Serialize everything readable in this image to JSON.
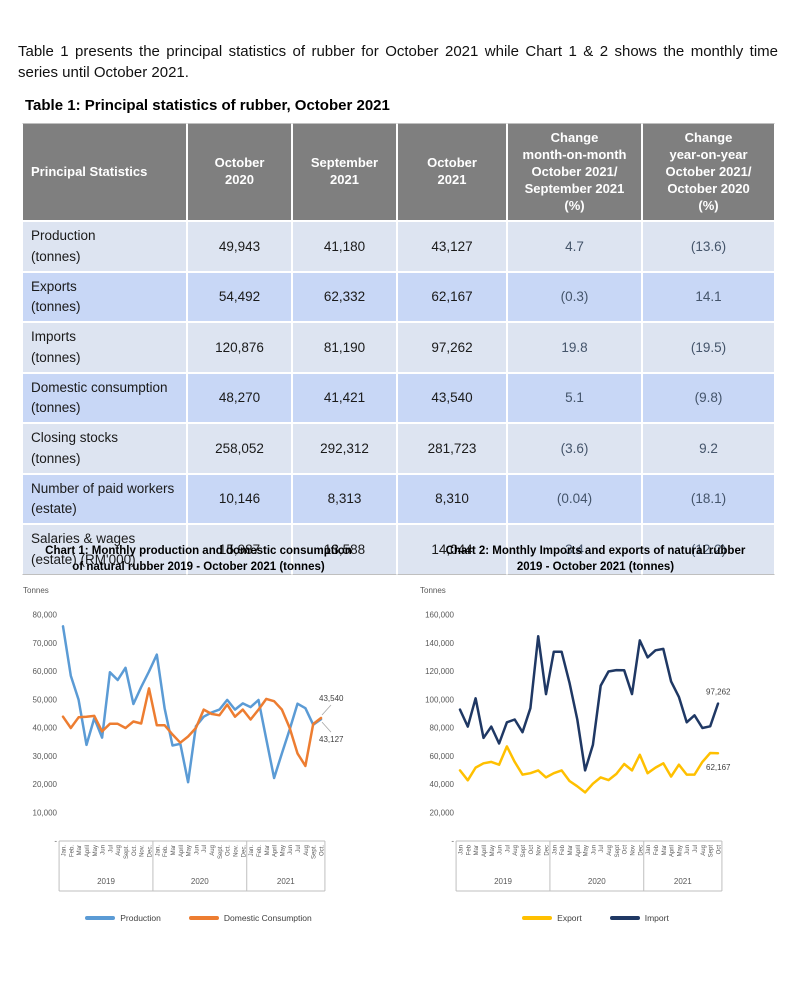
{
  "intro": {
    "text": "Table 1 presents the principal statistics of rubber for October 2021 while Chart 1 & 2 shows the monthly time series until October 2021."
  },
  "table": {
    "title": "Table 1: Principal statistics of rubber, October 2021",
    "columns": [
      "Principal Statistics",
      "October\n2020",
      "September\n2021",
      "October\n2021",
      "Change\nmonth-on-month\nOctober 2021/\nSeptember 2021\n(%)",
      "Change\nyear-on-year\nOctober 2021/\nOctober 2020\n(%)"
    ],
    "rows": [
      {
        "label": "Production",
        "sublabel": "(tonnes)",
        "values": [
          "49,943",
          "41,180",
          "43,127",
          "4.7",
          "(13.6)"
        ]
      },
      {
        "label": "Exports",
        "sublabel": "(tonnes)",
        "values": [
          "54,492",
          "62,332",
          "62,167",
          "(0.3)",
          "14.1"
        ]
      },
      {
        "label": "Imports",
        "sublabel": "(tonnes)",
        "values": [
          "120,876",
          "81,190",
          "97,262",
          "19.8",
          "(19.5)"
        ]
      },
      {
        "label": "Domestic consumption",
        "sublabel": "(tonnes)",
        "values": [
          "48,270",
          "41,421",
          "43,540",
          "5.1",
          "(9.8)"
        ]
      },
      {
        "label": "Closing stocks",
        "sublabel": "(tonnes)",
        "values": [
          "258,052",
          "292,312",
          "281,723",
          "(3.6)",
          "9.2"
        ]
      },
      {
        "label": "Number of paid workers",
        "sublabel": "(estate)",
        "values": [
          "10,146",
          "8,313",
          "8,310",
          "(0.04)",
          "(18.1)"
        ]
      },
      {
        "label": "Salaries & wages",
        "sublabel": "(estate) (RM'000)",
        "values": [
          "15,987",
          "13,588",
          "14,044",
          "3.4",
          "(12.2)"
        ]
      }
    ]
  },
  "chart_data": [
    {
      "type": "line",
      "title": "Chart 1: Monthly production and domestic consumption\nof natural rubber 2019 - October 2021 (tonnes)",
      "ylabel": "Tonnes",
      "ylim": [
        0,
        80000
      ],
      "ytick_step": 10000,
      "zero_label": "-",
      "grid": false,
      "legend_position": "bottom",
      "x_months": [
        "Jan.",
        "Feb.",
        "Mar",
        "April",
        "May",
        "Jun",
        "Jul",
        "Aug",
        "Sept.",
        "Oct.",
        "Nov.",
        "Dec.",
        "Jan.",
        "Feb.",
        "Mar",
        "April",
        "May",
        "Jun",
        "Jul",
        "Aug",
        "Sept.",
        "Oct.",
        "Nov.",
        "Dec.",
        "Jan.",
        "Feb.",
        "Mar",
        "April",
        "May",
        "Jun",
        "Jul",
        "Aug",
        "Sept.",
        "Oct."
      ],
      "year_groups": [
        {
          "label": "2019",
          "months": 12
        },
        {
          "label": "2020",
          "months": 12
        },
        {
          "label": "2021",
          "months": 10
        }
      ],
      "series": [
        {
          "name": "Production",
          "color": "#5B9BD5",
          "end_label": "43,127",
          "values": [
            76000,
            58500,
            50000,
            34000,
            43500,
            36600,
            59700,
            57000,
            61300,
            48500,
            54500,
            60000,
            66000,
            47000,
            33800,
            34400,
            20800,
            40600,
            44000,
            45500,
            46500,
            49943,
            46500,
            48700,
            47400,
            49900,
            36000,
            22300,
            31000,
            39500,
            48600,
            47000,
            41180,
            43127
          ]
        },
        {
          "name": "Domestic Consumption",
          "color": "#ED7D31",
          "end_label": "43,540",
          "values": [
            44000,
            40000,
            43800,
            44000,
            44300,
            38800,
            41500,
            41500,
            40000,
            42300,
            41600,
            54000,
            41000,
            41000,
            37700,
            34800,
            37000,
            40000,
            46500,
            45000,
            44500,
            48270,
            44000,
            46500,
            43000,
            46500,
            50300,
            49500,
            46500,
            40000,
            31000,
            26600,
            41421,
            43540
          ]
        }
      ]
    },
    {
      "type": "line",
      "title": "Chart 2: Monthly Imports and exports of natural rubber\n2019 - October 2021 (tonnes)",
      "ylabel": "Tonnes",
      "ylim": [
        0,
        160000
      ],
      "ytick_step": 20000,
      "zero_label": "-",
      "grid": false,
      "legend_position": "bottom",
      "x_months": [
        "Jan",
        "Feb",
        "Mar",
        "April",
        "May",
        "Jun",
        "Jul",
        "Aug",
        "Sept",
        "Oct",
        "Nov",
        "Dec",
        "Jan",
        "Feb",
        "Mar",
        "April",
        "May",
        "Jun",
        "Jul",
        "Aug",
        "Sept",
        "Oct",
        "Nov",
        "Dec",
        "Jan",
        "Feb",
        "Mar",
        "April",
        "May",
        "Jun",
        "Jul",
        "Aug",
        "Sept",
        "Oct"
      ],
      "year_groups": [
        {
          "label": "2019",
          "months": 12
        },
        {
          "label": "2020",
          "months": 12
        },
        {
          "label": "2021",
          "months": 10
        }
      ],
      "series": [
        {
          "name": "Export",
          "color": "#FFC000",
          "end_label": "62,167",
          "values": [
            50000,
            43000,
            52000,
            55000,
            56000,
            54000,
            67000,
            56000,
            47000,
            48000,
            50000,
            45000,
            48000,
            50000,
            42500,
            38700,
            34400,
            40600,
            45000,
            43100,
            47500,
            54492,
            50000,
            61000,
            48000,
            52000,
            55000,
            45600,
            54000,
            47000,
            47000,
            56000,
            62332,
            62167
          ]
        },
        {
          "name": "Import",
          "color": "#1F3864",
          "end_label": "97,262",
          "values": [
            93000,
            81000,
            101000,
            73000,
            81000,
            69000,
            84000,
            86000,
            77000,
            94000,
            145000,
            104000,
            134000,
            134000,
            112000,
            86000,
            50000,
            68000,
            110000,
            120000,
            121000,
            120876,
            104000,
            142000,
            130000,
            135000,
            136000,
            113000,
            102000,
            84000,
            89000,
            80000,
            81190,
            97262
          ]
        }
      ]
    }
  ]
}
